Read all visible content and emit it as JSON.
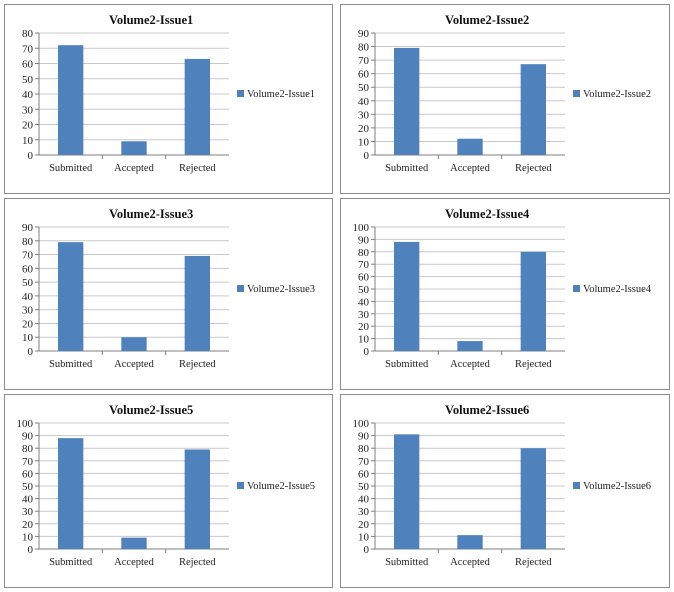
{
  "colors": {
    "bar": "#4f81bd",
    "grid": "#c9c9c9",
    "axis": "#7f7f7f",
    "border": "#8c8c8c"
  },
  "chart_data": [
    {
      "type": "bar",
      "title": "Volume2-Issue1",
      "categories": [
        "Submitted",
        "Accepted",
        "Rejected"
      ],
      "series": [
        {
          "name": "Volume2-Issue1",
          "values": [
            72,
            9,
            63
          ]
        }
      ],
      "ylim": [
        0,
        80
      ],
      "ystep": 10,
      "yticks": [
        "0",
        "10",
        "20",
        "30",
        "40",
        "50",
        "60",
        "70",
        "80"
      ],
      "grid": true,
      "legend": "right"
    },
    {
      "type": "bar",
      "title": "Volume2-Issue2",
      "categories": [
        "Submitted",
        "Accepted",
        "Rejected"
      ],
      "series": [
        {
          "name": "Volume2-Issue2",
          "values": [
            79,
            12,
            67
          ]
        }
      ],
      "ylim": [
        0,
        90
      ],
      "ystep": 10,
      "yticks": [
        "0",
        "10",
        "20",
        "30",
        "40",
        "50",
        "60",
        "70",
        "80",
        "90"
      ],
      "grid": true,
      "legend": "right"
    },
    {
      "type": "bar",
      "title": "Volume2-Issue3",
      "categories": [
        "Submitted",
        "Accepted",
        "Rejected"
      ],
      "series": [
        {
          "name": "Volume2-Issue3",
          "values": [
            79,
            10,
            69
          ]
        }
      ],
      "ylim": [
        0,
        90
      ],
      "ystep": 10,
      "yticks": [
        "0",
        "10",
        "20",
        "30",
        "40",
        "50",
        "60",
        "70",
        "80",
        "90"
      ],
      "grid": true,
      "legend": "right"
    },
    {
      "type": "bar",
      "title": "Volume2-Issue4",
      "categories": [
        "Submitted",
        "Accepted",
        "Rejected"
      ],
      "series": [
        {
          "name": "Volume2-Issue4",
          "values": [
            88,
            8,
            80
          ]
        }
      ],
      "ylim": [
        0,
        100
      ],
      "ystep": 10,
      "yticks": [
        "0",
        "10",
        "20",
        "30",
        "40",
        "50",
        "60",
        "70",
        "80",
        "90",
        "100"
      ],
      "grid": true,
      "legend": "right"
    },
    {
      "type": "bar",
      "title": "Volume2-Issue5",
      "categories": [
        "Submitted",
        "Accepted",
        "Rejected"
      ],
      "series": [
        {
          "name": "Volume2-Issue5",
          "values": [
            88,
            9,
            79
          ]
        }
      ],
      "ylim": [
        0,
        100
      ],
      "ystep": 10,
      "yticks": [
        "0",
        "10",
        "20",
        "30",
        "40",
        "50",
        "60",
        "70",
        "80",
        "90",
        "100"
      ],
      "grid": true,
      "legend": "right"
    },
    {
      "type": "bar",
      "title": "Volume2-Issue6",
      "categories": [
        "Submitted",
        "Accepted",
        "Rejected"
      ],
      "series": [
        {
          "name": "Volume2-Issue6",
          "values": [
            91,
            11,
            80
          ]
        }
      ],
      "ylim": [
        0,
        100
      ],
      "ystep": 10,
      "yticks": [
        "0",
        "10",
        "20",
        "30",
        "40",
        "50",
        "60",
        "70",
        "80",
        "90",
        "100"
      ],
      "grid": true,
      "legend": "right"
    }
  ]
}
